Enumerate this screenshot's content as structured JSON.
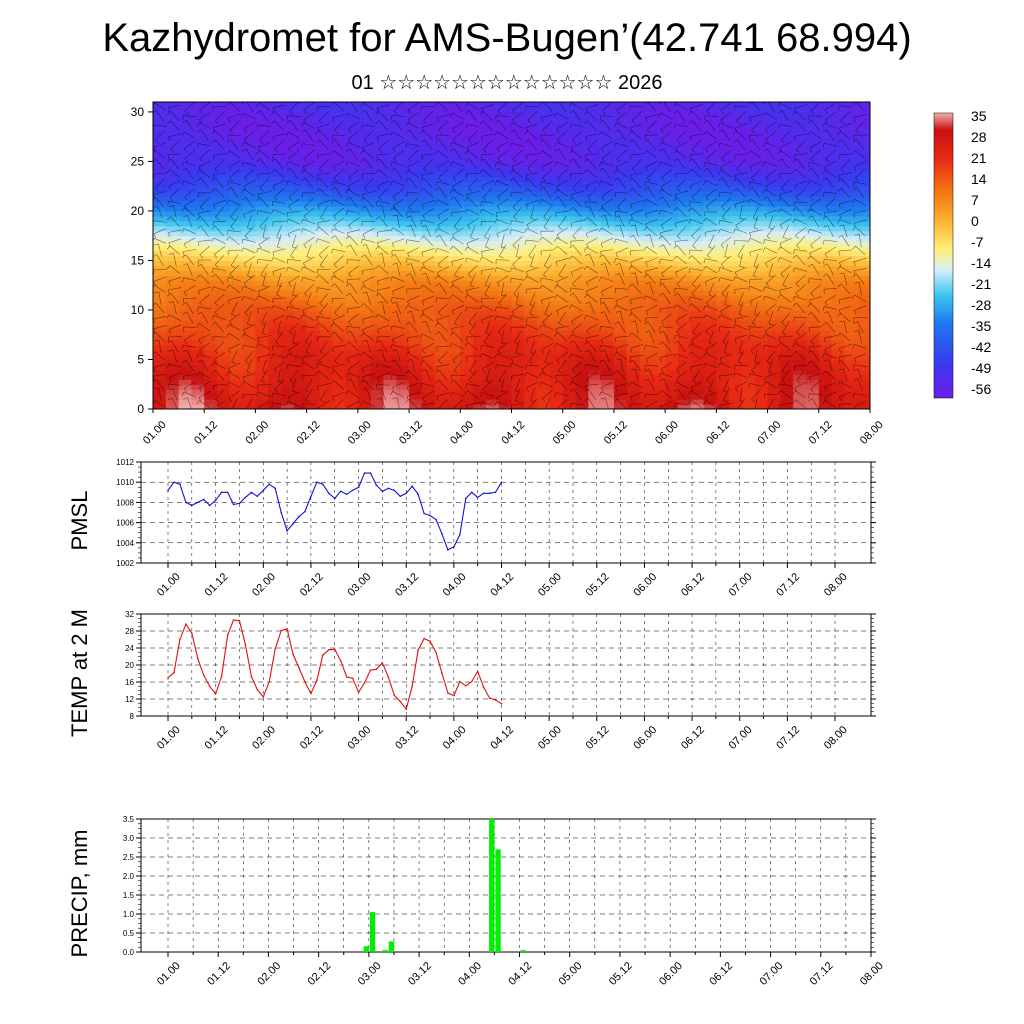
{
  "title": "Kazhydromet for AMS-Bugen’(42.741 68.994)",
  "subtitle": "01 ☆☆☆☆☆☆☆☆☆☆☆☆☆ 2026",
  "colors": {
    "pmsl": "#1010e0",
    "temp": "#e01010",
    "precip": "#00ee00"
  },
  "chart_data": [
    {
      "id": "cross-section",
      "type": "heatmap",
      "y_ticks": [
        "0",
        "5",
        "10",
        "15",
        "20",
        "25",
        "30"
      ],
      "ylim": [
        0,
        31
      ],
      "x_ticks": [
        "01.00",
        "01.12",
        "02.00",
        "02.12",
        "03.00",
        "03.12",
        "04.00",
        "04.12",
        "05.00",
        "05.12",
        "06.00",
        "06.12",
        "07.00",
        "07.12",
        "08.00"
      ],
      "colorbar_labels": [
        "35",
        "28",
        "21",
        "14",
        "7",
        "0",
        "-7",
        "-14",
        "-21",
        "-28",
        "-35",
        "-42",
        "-49",
        "-56"
      ],
      "colorbar_range": [
        -60,
        38
      ],
      "temperature_levels": [
        {
          "level": 0,
          "value": 30
        },
        {
          "level": 5,
          "value": 24
        },
        {
          "level": 10,
          "value": 14
        },
        {
          "level": 13,
          "value": 6
        },
        {
          "level": 16,
          "value": -10
        },
        {
          "level": 19,
          "value": -28
        },
        {
          "level": 22,
          "value": -45
        },
        {
          "level": 25,
          "value": -56
        },
        {
          "level": 28,
          "value": -58
        },
        {
          "level": 31,
          "value": -55
        }
      ]
    },
    {
      "id": "pmsl",
      "type": "line",
      "ylabel": "PMSL",
      "ylim": [
        1002,
        1012
      ],
      "y_ticks": [
        "1002",
        "1004",
        "1006",
        "1008",
        "1010",
        "1012"
      ],
      "x_ticks": [
        "01.00",
        "01.12",
        "02.00",
        "02.12",
        "03.00",
        "03.12",
        "04.00",
        "04.12",
        "05.00",
        "05.12",
        "06.00",
        "06.12",
        "07.00",
        "07.12",
        "08.00"
      ],
      "series": [
        {
          "values": [
            1009.2,
            1010.0,
            1009.8,
            1008.0,
            1007.7,
            1008.0,
            1008.3,
            1007.7,
            1008.2,
            1009.0,
            1009.0,
            1007.8,
            1007.9,
            1008.5,
            1009.0,
            1008.6,
            1009.2,
            1009.8,
            1009.4,
            1007.0,
            1005.2,
            1005.9,
            1006.6,
            1007.1,
            1008.6,
            1010.0,
            1009.8,
            1008.9,
            1008.4,
            1009.1,
            1008.8,
            1009.2,
            1009.5,
            1010.9,
            1010.9,
            1009.7,
            1009.1,
            1009.4,
            1009.2,
            1008.6,
            1008.9,
            1009.6,
            1008.8,
            1006.9,
            1006.7,
            1006.3,
            1004.9,
            1003.3,
            1003.6,
            1004.8,
            1008.4,
            1009.0,
            1008.5,
            1008.9,
            1008.9,
            1009.0,
            1010.0
          ]
        }
      ]
    },
    {
      "id": "temp2m",
      "type": "line",
      "ylabel": "TEMP at 2 M",
      "ylim": [
        8,
        32
      ],
      "y_ticks": [
        "8",
        "12",
        "16",
        "20",
        "24",
        "28",
        "32"
      ],
      "x_ticks": [
        "01.00",
        "01.12",
        "02.00",
        "02.12",
        "03.00",
        "03.12",
        "04.00",
        "04.12",
        "05.00",
        "05.12",
        "06.00",
        "06.12",
        "07.00",
        "07.12",
        "08.00"
      ],
      "series": [
        {
          "values": [
            17.0,
            18.2,
            26.0,
            29.6,
            27.5,
            21.5,
            17.6,
            15.0,
            13.2,
            17.3,
            27.0,
            30.6,
            30.4,
            24.8,
            17.3,
            14.2,
            12.5,
            16.0,
            23.8,
            28.1,
            28.5,
            22.5,
            19.3,
            16.0,
            13.3,
            16.4,
            22.3,
            23.6,
            23.7,
            21.0,
            17.2,
            16.9,
            13.6,
            15.8,
            18.8,
            19.0,
            20.5,
            17.2,
            12.9,
            11.4,
            9.6,
            15.0,
            23.5,
            26.2,
            25.6,
            23.0,
            18.1,
            13.4,
            12.8,
            16.1,
            15.1,
            16.1,
            18.5,
            14.8,
            12.2,
            11.8,
            10.9
          ]
        }
      ]
    },
    {
      "id": "precip",
      "type": "bar",
      "ylabel": "PRECIP, mm",
      "ylim": [
        0,
        3.5
      ],
      "y_ticks": [
        "0.0",
        "0.5",
        "1.0",
        "1.5",
        "2.0",
        "2.5",
        "3.0",
        "3.5"
      ],
      "x_ticks": [
        "01.00",
        "01.12",
        "02.00",
        "02.12",
        "03.00",
        "03.12",
        "04.00",
        "04.12",
        "05.00",
        "05.12",
        "06.00",
        "06.12",
        "07.00",
        "07.12",
        "08.00"
      ],
      "bars": [
        {
          "step": 32,
          "value": 0.15
        },
        {
          "step": 33,
          "value": 1.05
        },
        {
          "step": 35,
          "value": 0.05
        },
        {
          "step": 36,
          "value": 0.28
        },
        {
          "step": 52,
          "value": 3.5
        },
        {
          "step": 53,
          "value": 2.7
        },
        {
          "step": 57,
          "value": 0.05
        }
      ]
    }
  ]
}
